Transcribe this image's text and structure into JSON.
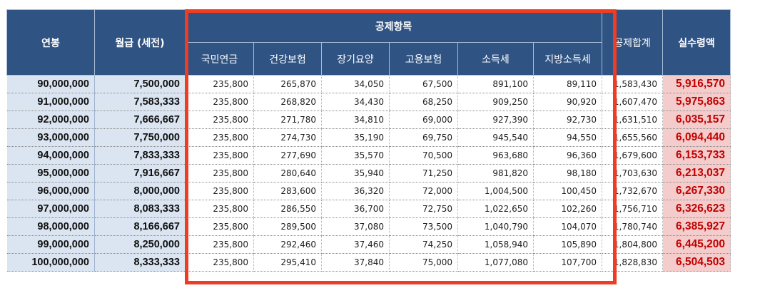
{
  "headers": {
    "annual": "연봉",
    "monthly": "월급 (세전)",
    "deduction_group": "공제항목",
    "pension": "국민연금",
    "health": "건강보험",
    "longterm": "장기요양",
    "employment": "고용보험",
    "income_tax": "소득세",
    "local_tax": "지방소득세",
    "total_deduction": "공제합계",
    "net_pay": "실수령액"
  },
  "rows": [
    {
      "annual": "90,000,000",
      "monthly": "7,500,000",
      "pension": "235,800",
      "health": "265,870",
      "longterm": "34,050",
      "employment": "67,500",
      "income_tax": "891,100",
      "local_tax": "89,110",
      "total": "1,583,430",
      "net": "5,916,570"
    },
    {
      "annual": "91,000,000",
      "monthly": "7,583,333",
      "pension": "235,800",
      "health": "268,820",
      "longterm": "34,430",
      "employment": "68,250",
      "income_tax": "909,250",
      "local_tax": "90,920",
      "total": "1,607,470",
      "net": "5,975,863"
    },
    {
      "annual": "92,000,000",
      "monthly": "7,666,667",
      "pension": "235,800",
      "health": "271,780",
      "longterm": "34,810",
      "employment": "69,000",
      "income_tax": "927,390",
      "local_tax": "92,730",
      "total": "1,631,510",
      "net": "6,035,157"
    },
    {
      "annual": "93,000,000",
      "monthly": "7,750,000",
      "pension": "235,800",
      "health": "274,730",
      "longterm": "35,190",
      "employment": "69,750",
      "income_tax": "945,540",
      "local_tax": "94,550",
      "total": "1,655,560",
      "net": "6,094,440"
    },
    {
      "annual": "94,000,000",
      "monthly": "7,833,333",
      "pension": "235,800",
      "health": "277,690",
      "longterm": "35,570",
      "employment": "70,500",
      "income_tax": "963,680",
      "local_tax": "96,360",
      "total": "1,679,600",
      "net": "6,153,733"
    },
    {
      "annual": "95,000,000",
      "monthly": "7,916,667",
      "pension": "235,800",
      "health": "280,640",
      "longterm": "35,940",
      "employment": "71,250",
      "income_tax": "981,820",
      "local_tax": "98,180",
      "total": "1,703,630",
      "net": "6,213,037"
    },
    {
      "annual": "96,000,000",
      "monthly": "8,000,000",
      "pension": "235,800",
      "health": "283,600",
      "longterm": "36,320",
      "employment": "72,000",
      "income_tax": "1,004,500",
      "local_tax": "100,450",
      "total": "1,732,670",
      "net": "6,267,330"
    },
    {
      "annual": "97,000,000",
      "monthly": "8,083,333",
      "pension": "235,800",
      "health": "286,550",
      "longterm": "36,700",
      "employment": "72,750",
      "income_tax": "1,022,650",
      "local_tax": "102,260",
      "total": "1,756,710",
      "net": "6,326,623"
    },
    {
      "annual": "98,000,000",
      "monthly": "8,166,667",
      "pension": "235,800",
      "health": "289,500",
      "longterm": "37,080",
      "employment": "73,500",
      "income_tax": "1,040,790",
      "local_tax": "104,070",
      "total": "1,780,740",
      "net": "6,385,927"
    },
    {
      "annual": "99,000,000",
      "monthly": "8,250,000",
      "pension": "235,800",
      "health": "292,460",
      "longterm": "37,460",
      "employment": "74,250",
      "income_tax": "1,058,940",
      "local_tax": "105,890",
      "total": "1,804,800",
      "net": "6,445,200"
    },
    {
      "annual": "100,000,000",
      "monthly": "8,333,333",
      "pension": "235,800",
      "health": "295,410",
      "longterm": "37,840",
      "employment": "75,000",
      "income_tax": "1,077,080",
      "local_tax": "107,700",
      "total": "1,828,830",
      "net": "6,504,503"
    }
  ],
  "colors": {
    "header_bg": "#2f5383",
    "annual_bg": "#dbe5f1",
    "net_bg": "#f4cccc",
    "net_text": "#c00000",
    "highlight_border": "#f03c22"
  }
}
